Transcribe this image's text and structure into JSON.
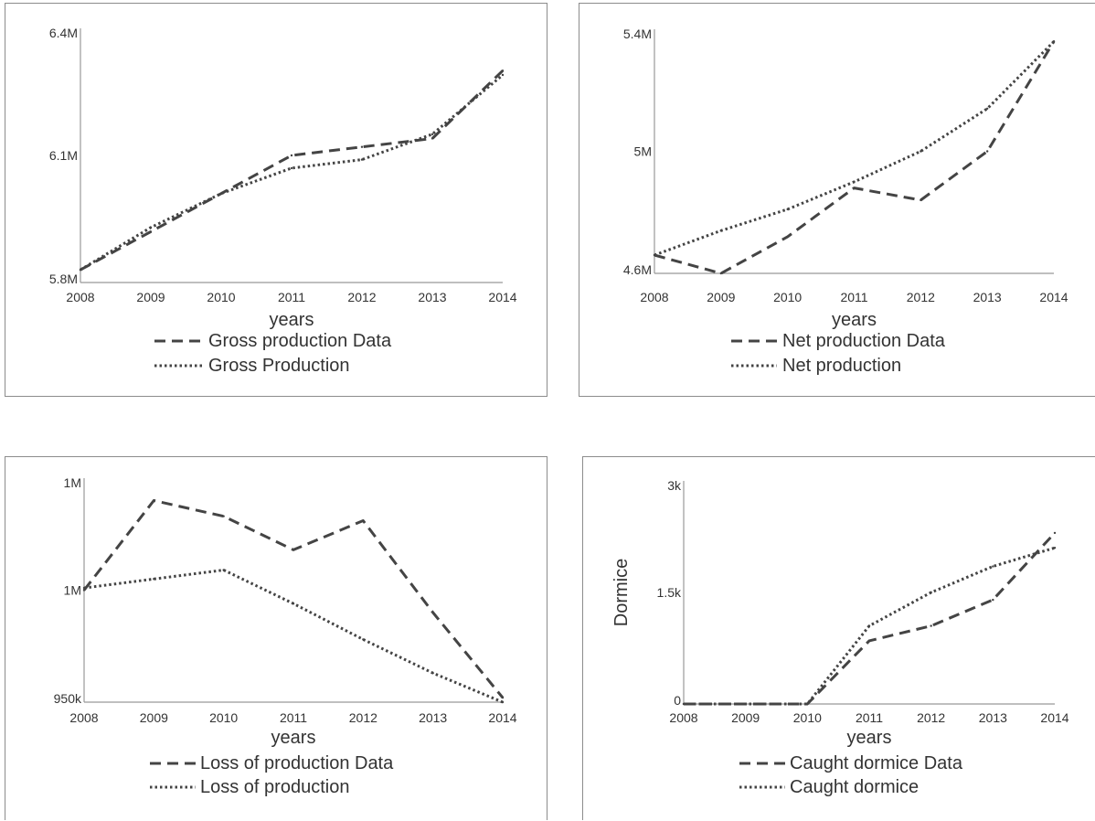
{
  "chart_data": [
    {
      "type": "line",
      "title": "",
      "xlabel": "years",
      "ylabel": "",
      "x": [
        2008,
        2009,
        2010,
        2011,
        2012,
        2013,
        2014
      ],
      "ylim": [
        5800000,
        6400000
      ],
      "yticks": [
        5800000,
        6100000,
        6400000
      ],
      "ytick_labels": [
        "5.8M",
        "6.1M",
        "6.4M"
      ],
      "legend_position": "bottom",
      "series": [
        {
          "name": "Gross production Data",
          "style": "dashed",
          "values": [
            5830000,
            5920000,
            6010000,
            6100000,
            6120000,
            6140000,
            6300000
          ]
        },
        {
          "name": "Gross Production",
          "style": "dotted",
          "values": [
            5830000,
            5930000,
            6010000,
            6070000,
            6090000,
            6150000,
            6290000
          ]
        }
      ]
    },
    {
      "type": "line",
      "title": "",
      "xlabel": "years",
      "ylabel": "",
      "x": [
        2008,
        2009,
        2010,
        2011,
        2012,
        2013,
        2014
      ],
      "ylim": [
        4600000,
        5400000
      ],
      "yticks": [
        4600000,
        5000000,
        5400000
      ],
      "ytick_labels": [
        "4.6M",
        "5M",
        "5.4M"
      ],
      "legend_position": "bottom",
      "series": [
        {
          "name": "Net production Data",
          "style": "dashed",
          "values": [
            4660000,
            4600000,
            4720000,
            4880000,
            4840000,
            5000000,
            5360000
          ]
        },
        {
          "name": "Net production",
          "style": "dotted",
          "values": [
            4660000,
            4740000,
            4810000,
            4900000,
            5000000,
            5140000,
            5360000
          ]
        }
      ]
    },
    {
      "type": "line",
      "title": "",
      "xlabel": "years",
      "ylabel": "",
      "x": [
        2008,
        2009,
        2010,
        2011,
        2012,
        2013,
        2014
      ],
      "ylim": [
        950000,
        1050000
      ],
      "yticks": [
        950000,
        1000000,
        1050000
      ],
      "ytick_labels": [
        "950k",
        "1M",
        "1M"
      ],
      "legend_position": "bottom",
      "series": [
        {
          "name": "Loss of production Data",
          "style": "dashed",
          "values": [
            1000000,
            1040000,
            1033000,
            1018000,
            1031000,
            990000,
            952000
          ]
        },
        {
          "name": "Loss of production",
          "style": "dotted",
          "values": [
            1001000,
            1005000,
            1009000,
            994000,
            978000,
            963000,
            950000
          ]
        }
      ]
    },
    {
      "type": "line",
      "title": "",
      "xlabel": "years",
      "ylabel": "Dormice",
      "x": [
        2008,
        2009,
        2010,
        2011,
        2012,
        2013,
        2014
      ],
      "ylim": [
        0,
        3000
      ],
      "yticks": [
        0,
        1500,
        3000
      ],
      "ytick_labels": [
        "0",
        "1.5k",
        "3k"
      ],
      "xtick_labels": [
        "2008",
        "2009",
        "2010",
        "2011",
        "2012",
        "2013",
        "2014"
      ],
      "legend_position": "bottom",
      "series": [
        {
          "name": "Caught dormice Data",
          "style": "dashed",
          "values": [
            0,
            0,
            0,
            850,
            1050,
            1400,
            2300
          ]
        },
        {
          "name": "Caught dormice",
          "style": "dotted",
          "values": [
            0,
            0,
            0,
            1050,
            1500,
            1850,
            2100
          ]
        }
      ]
    }
  ]
}
